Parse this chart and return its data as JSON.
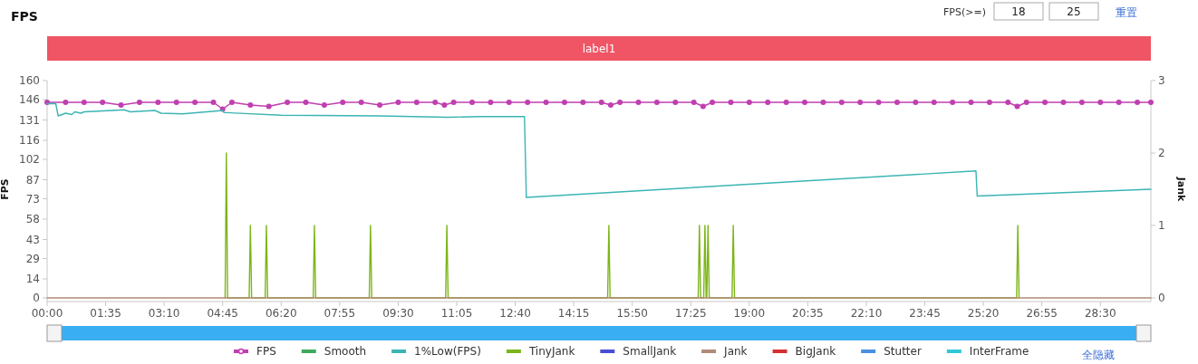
{
  "chart_data": {
    "type": "line",
    "title": "FPS",
    "ylabel": "FPS",
    "y2label": "Jank",
    "xlim": [
      0,
      1792
    ],
    "ylim": [
      0,
      160
    ],
    "y2lim": [
      0,
      3
    ],
    "xticks": [
      {
        "value": 0,
        "label": "00:00"
      },
      {
        "value": 95,
        "label": "01:35"
      },
      {
        "value": 190,
        "label": "03:10"
      },
      {
        "value": 285,
        "label": "04:45"
      },
      {
        "value": 380,
        "label": "06:20"
      },
      {
        "value": 475,
        "label": "07:55"
      },
      {
        "value": 570,
        "label": "09:30"
      },
      {
        "value": 665,
        "label": "11:05"
      },
      {
        "value": 760,
        "label": "12:40"
      },
      {
        "value": 855,
        "label": "14:15"
      },
      {
        "value": 950,
        "label": "15:50"
      },
      {
        "value": 1045,
        "label": "17:25"
      },
      {
        "value": 1140,
        "label": "19:00"
      },
      {
        "value": 1235,
        "label": "20:35"
      },
      {
        "value": 1330,
        "label": "22:10"
      },
      {
        "value": 1425,
        "label": "23:45"
      },
      {
        "value": 1520,
        "label": "25:20"
      },
      {
        "value": 1615,
        "label": "26:55"
      },
      {
        "value": 1710,
        "label": "28:30"
      }
    ],
    "yticks": [
      0,
      14,
      29,
      43,
      58,
      73,
      87,
      102,
      116,
      131,
      146,
      160
    ],
    "y2ticks": [
      0,
      1,
      2,
      3
    ],
    "legend": "bottom",
    "annotations": [
      "FPS(>=)",
      "18",
      "25",
      "重置",
      "全隐藏",
      "label1"
    ],
    "series": [
      {
        "name": "FPS",
        "color": "#c03fb0",
        "marker": "circle",
        "x": [
          0,
          30,
          60,
          90,
          120,
          150,
          180,
          210,
          240,
          270,
          285,
          300,
          330,
          360,
          390,
          420,
          450,
          480,
          510,
          540,
          570,
          600,
          630,
          645,
          660,
          690,
          720,
          750,
          780,
          810,
          840,
          870,
          900,
          915,
          930,
          960,
          990,
          1020,
          1050,
          1065,
          1080,
          1110,
          1140,
          1170,
          1200,
          1230,
          1260,
          1290,
          1320,
          1350,
          1380,
          1410,
          1440,
          1470,
          1500,
          1530,
          1560,
          1575,
          1590,
          1620,
          1650,
          1680,
          1710,
          1740,
          1770,
          1792
        ],
        "values": [
          144,
          144,
          144,
          144,
          142,
          144,
          144,
          144,
          144,
          144,
          139,
          144,
          142,
          141,
          144,
          144,
          142,
          144,
          144,
          142,
          144,
          144,
          144,
          142,
          144,
          144,
          144,
          144,
          144,
          144,
          144,
          144,
          144,
          142,
          144,
          144,
          144,
          144,
          144,
          141,
          144,
          144,
          144,
          144,
          144,
          144,
          144,
          144,
          144,
          144,
          144,
          144,
          144,
          144,
          144,
          144,
          144,
          141,
          144,
          144,
          144,
          144,
          144,
          144,
          144,
          144
        ]
      },
      {
        "name": "Smooth",
        "color": "#3daa5a"
      },
      {
        "name": "1%Low(FPS)",
        "color": "#3cb4b4",
        "x": [
          0,
          14,
          18,
          30,
          40,
          45,
          55,
          60,
          105,
          125,
          135,
          175,
          185,
          220,
          285,
          287,
          380,
          540,
          650,
          700,
          775,
          778,
          1508,
          1510,
          1792
        ],
        "values": [
          143,
          143,
          134,
          136,
          135,
          137,
          136,
          137,
          138,
          138.5,
          137,
          138,
          136,
          135.5,
          138,
          136.5,
          134.5,
          134,
          133,
          133.5,
          133.5,
          74,
          93.5,
          75,
          80
        ]
      },
      {
        "name": "TinyJank",
        "color": "#7cb518",
        "axis": "y2",
        "x": [
          289,
          291,
          293,
          328,
          330,
          332,
          354,
          356,
          358,
          432,
          434,
          436,
          523,
          525,
          527,
          647,
          649,
          651,
          910,
          912,
          914,
          1057,
          1059,
          1061,
          1066,
          1068,
          1070,
          1071,
          1073,
          1075,
          1112,
          1114,
          1116,
          1574,
          1576,
          1578
        ],
        "values": [
          0,
          2,
          0,
          0,
          1,
          0,
          0,
          1,
          0,
          0,
          1,
          0,
          0,
          1,
          0,
          0,
          1,
          0,
          0,
          1,
          0,
          0,
          1,
          0,
          0,
          1,
          0,
          0,
          1,
          0,
          0,
          1,
          0,
          0,
          1,
          0
        ]
      },
      {
        "name": "SmallJank",
        "color": "#4b4bd8",
        "axis": "y2"
      },
      {
        "name": "Jank",
        "color": "#b08a78",
        "axis": "y2",
        "x": [
          0,
          1792
        ],
        "values": [
          0,
          0
        ]
      },
      {
        "name": "BigJank",
        "color": "#d43030",
        "axis": "y2"
      },
      {
        "name": "Stutter",
        "color": "#4a8fe0",
        "axis": "y2"
      },
      {
        "name": "InterFrame",
        "color": "#30c8d8",
        "axis": "y2"
      }
    ]
  }
}
